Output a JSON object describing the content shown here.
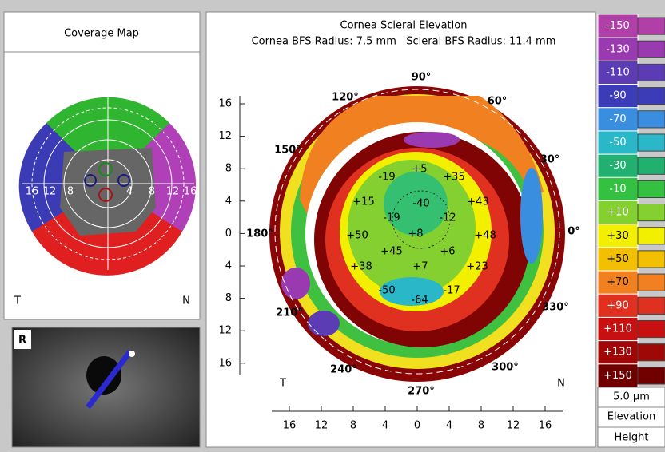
{
  "coverage_map": {
    "title": "Coverage Map",
    "ring_labels_left": [
      "16",
      "12",
      "8"
    ],
    "ring_labels_right": [
      "4",
      "8",
      "12",
      "16"
    ],
    "left_label": "T",
    "right_label": "N"
  },
  "eye_image": {
    "label": "R"
  },
  "elevation_map": {
    "title": "Cornea Scleral Elevation",
    "subtitle": "Cornea BFS Radius: 7.5 mm   Scleral BFS Radius: 11.4 mm",
    "y_labels": [
      "16",
      "12",
      "8",
      "4",
      "0",
      "4",
      "8",
      "12",
      "16"
    ],
    "x_labels": [
      "16",
      "12",
      "8",
      "4",
      "0",
      "4",
      "8",
      "12",
      "16"
    ],
    "angle_labels": [
      "90°",
      "60°",
      "30°",
      "0°",
      "330°",
      "300°",
      "270°",
      "240°",
      "210°",
      "180°",
      "150°",
      "120°"
    ],
    "points": [
      "-19",
      "+5",
      "+35",
      "+15",
      "-40",
      "+43",
      "-19",
      "-12",
      "+50",
      "+8",
      "+48",
      "+45",
      "+6",
      "+38",
      "+7",
      "+23",
      "-50",
      "-64",
      "-17"
    ],
    "left_label": "T",
    "right_label": "N"
  },
  "color_scale": {
    "items": [
      {
        "label": "-150",
        "color": "#b040a8"
      },
      {
        "label": "-130",
        "color": "#9a3ab0"
      },
      {
        "label": "-110",
        "color": "#5c3cb4"
      },
      {
        "label": "-90",
        "color": "#3c3cb8"
      },
      {
        "label": "-70",
        "color": "#3a8ee0"
      },
      {
        "label": "-50",
        "color": "#2ab8c8"
      },
      {
        "label": "-30",
        "color": "#22b070"
      },
      {
        "label": "-10",
        "color": "#34c040"
      },
      {
        "label": "+10",
        "color": "#84d030"
      },
      {
        "label": "+30",
        "color": "#f2f000"
      },
      {
        "label": "+50",
        "color": "#f2c000"
      },
      {
        "label": "+70",
        "color": "#f08020"
      },
      {
        "label": "+90",
        "color": "#e03020"
      },
      {
        "label": "+110",
        "color": "#c81010"
      },
      {
        "label": "+130",
        "color": "#a00808"
      },
      {
        "label": "+150",
        "color": "#700000"
      }
    ],
    "step": "5.0 µm",
    "mode1": "Elevation",
    "mode2": "Height"
  }
}
